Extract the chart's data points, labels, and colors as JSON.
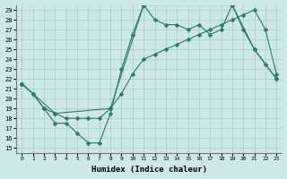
{
  "xlabel": "Humidex (Indice chaleur)",
  "background_color": "#cce8e8",
  "grid_color": "#aacccc",
  "line_color": "#2a7a6a",
  "xlim": [
    -0.5,
    23.5
  ],
  "ylim": [
    14.5,
    29.5
  ],
  "yticks": [
    15,
    16,
    17,
    18,
    19,
    20,
    21,
    22,
    23,
    24,
    25,
    26,
    27,
    28,
    29
  ],
  "xticks": [
    0,
    1,
    2,
    3,
    4,
    5,
    6,
    7,
    8,
    9,
    10,
    11,
    12,
    13,
    14,
    15,
    16,
    17,
    18,
    19,
    20,
    21,
    22,
    23
  ],
  "line1_x": [
    0,
    1,
    2,
    3,
    4,
    5,
    6,
    7,
    8,
    9,
    10,
    11,
    12,
    13,
    14,
    15,
    16,
    17,
    18,
    19,
    20,
    21,
    22,
    23
  ],
  "line1_y": [
    21.5,
    20.5,
    19.0,
    18.5,
    18.0,
    18.0,
    18.0,
    18.0,
    19.0,
    20.5,
    22.5,
    24.0,
    24.5,
    25.0,
    25.5,
    26.0,
    26.5,
    27.0,
    27.5,
    28.0,
    28.5,
    29.0,
    27.0,
    22.5
  ],
  "line2_x": [
    0,
    1,
    2,
    3,
    4,
    5,
    6,
    7,
    8,
    9,
    10,
    11,
    12,
    13,
    14,
    15,
    16,
    17,
    18,
    19,
    20,
    21,
    22,
    23
  ],
  "line2_y": [
    21.5,
    20.5,
    19.0,
    17.5,
    17.5,
    16.5,
    15.5,
    15.5,
    18.5,
    23.0,
    26.5,
    29.5,
    28.0,
    27.5,
    27.5,
    27.0,
    27.5,
    26.5,
    27.0,
    29.5,
    27.0,
    25.0,
    23.5,
    22.0
  ],
  "line3_x": [
    0,
    3,
    8,
    11,
    19,
    21,
    23
  ],
  "line3_y": [
    21.5,
    18.5,
    19.0,
    29.5,
    29.5,
    25.0,
    22.0
  ]
}
